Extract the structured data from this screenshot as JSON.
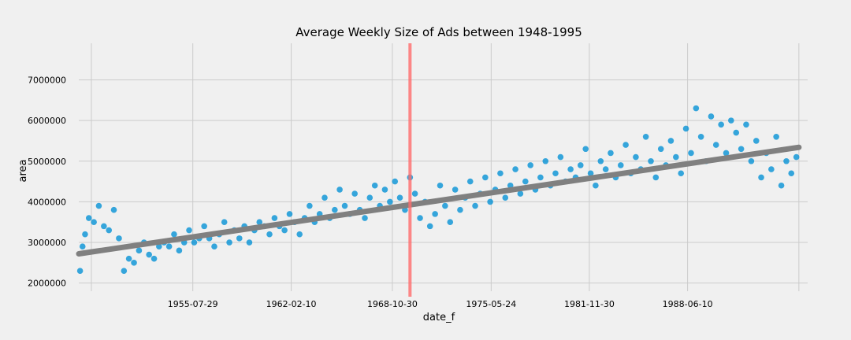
{
  "chart_data": {
    "type": "scatter",
    "title": "Average Weekly Size of Ads between 1948-1995",
    "xlabel": "date_f",
    "ylabel": "area",
    "x_ticks": [
      "1955-07-29",
      "1962-02-10",
      "1968-10-30",
      "1975-05-24",
      "1981-11-30",
      "1988-06-10"
    ],
    "y_ticks": [
      "2000000",
      "3000000",
      "4000000",
      "5000000",
      "6000000",
      "7000000"
    ],
    "xlim": [
      "1948-01-01",
      "1996-06-01"
    ],
    "ylim": [
      1800000,
      7900000
    ],
    "grid": true,
    "colors": {
      "points": "#008fd5",
      "trend": "#808080",
      "marker": "#ff6b6b",
      "background": "#f0f0f0",
      "grid": "#cbcbcb"
    },
    "series": [
      {
        "kind": "scatter",
        "x": [
          "1948-02-01",
          "1948-04-01",
          "1948-06-01",
          "1948-09-01",
          "1949-01-01",
          "1949-05-01",
          "1949-09-01",
          "1950-01-01",
          "1950-05-01",
          "1950-09-01",
          "1951-01-01",
          "1951-05-01",
          "1951-09-01",
          "1952-01-01",
          "1952-05-01",
          "1952-09-01",
          "1953-01-01",
          "1953-05-01",
          "1953-09-01",
          "1954-01-01",
          "1954-05-01",
          "1954-09-01",
          "1955-01-01",
          "1955-05-01",
          "1955-09-01",
          "1956-01-01",
          "1956-05-01",
          "1956-09-01",
          "1957-01-01",
          "1957-05-01",
          "1957-09-01",
          "1958-01-01",
          "1958-05-01",
          "1958-09-01",
          "1959-01-01",
          "1959-05-01",
          "1959-09-01",
          "1960-01-01",
          "1960-05-01",
          "1960-09-01",
          "1961-01-01",
          "1961-05-01",
          "1961-09-01",
          "1962-01-01",
          "1962-05-01",
          "1962-09-01",
          "1963-01-01",
          "1963-05-01",
          "1963-09-01",
          "1964-01-01",
          "1964-05-01",
          "1964-09-01",
          "1965-01-01",
          "1965-05-01",
          "1965-09-01",
          "1966-01-01",
          "1966-05-01",
          "1966-09-01",
          "1967-01-01",
          "1967-05-01",
          "1967-09-01",
          "1968-01-01",
          "1968-05-01",
          "1968-09-01",
          "1969-01-01",
          "1969-05-01",
          "1969-09-01",
          "1970-01-01",
          "1970-05-01",
          "1970-09-01",
          "1971-01-01",
          "1971-05-01",
          "1971-09-01",
          "1972-01-01",
          "1972-05-01",
          "1972-09-01",
          "1973-01-01",
          "1973-05-01",
          "1973-09-01",
          "1974-01-01",
          "1974-05-01",
          "1974-09-01",
          "1975-01-01",
          "1975-05-01",
          "1975-09-01",
          "1976-01-01",
          "1976-05-01",
          "1976-09-01",
          "1977-01-01",
          "1977-05-01",
          "1977-09-01",
          "1978-01-01",
          "1978-05-01",
          "1978-09-01",
          "1979-01-01",
          "1979-05-01",
          "1979-09-01",
          "1980-01-01",
          "1980-05-01",
          "1980-09-01",
          "1981-01-01",
          "1981-05-01",
          "1981-09-01",
          "1982-01-01",
          "1982-05-01",
          "1982-09-01",
          "1983-01-01",
          "1983-05-01",
          "1983-09-01",
          "1984-01-01",
          "1984-05-01",
          "1984-09-01",
          "1985-01-01",
          "1985-05-01",
          "1985-09-01",
          "1986-01-01",
          "1986-05-01",
          "1986-09-01",
          "1987-01-01",
          "1987-05-01",
          "1987-09-01",
          "1988-01-01",
          "1988-05-01",
          "1988-09-01",
          "1989-01-01",
          "1989-05-01",
          "1989-09-01",
          "1990-01-01",
          "1990-05-01",
          "1990-09-01",
          "1991-01-01",
          "1991-05-01",
          "1991-09-01",
          "1992-01-01",
          "1992-05-01",
          "1992-09-01",
          "1993-01-01",
          "1993-05-01",
          "1993-09-01",
          "1994-01-01",
          "1994-05-01",
          "1994-09-01",
          "1995-01-01",
          "1995-05-01",
          "1995-09-01"
        ],
        "y": [
          2300000,
          2900000,
          3200000,
          3600000,
          3500000,
          3900000,
          3400000,
          3300000,
          3800000,
          3100000,
          2300000,
          2600000,
          2500000,
          2800000,
          3000000,
          2700000,
          2600000,
          2900000,
          3000000,
          2900000,
          3200000,
          2800000,
          3000000,
          3300000,
          3000000,
          3100000,
          3400000,
          3100000,
          2900000,
          3200000,
          3500000,
          3000000,
          3300000,
          3100000,
          3400000,
          3000000,
          3300000,
          3500000,
          3400000,
          3200000,
          3600000,
          3400000,
          3300000,
          3700000,
          3500000,
          3200000,
          3600000,
          3900000,
          3500000,
          3700000,
          4100000,
          3600000,
          3800000,
          4300000,
          3900000,
          3700000,
          4200000,
          3800000,
          3600000,
          4100000,
          4400000,
          3900000,
          4300000,
          4000000,
          4500000,
          4100000,
          3800000,
          4600000,
          4200000,
          3600000,
          4000000,
          3400000,
          3700000,
          4400000,
          3900000,
          3500000,
          4300000,
          3800000,
          4100000,
          4500000,
          3900000,
          4200000,
          4600000,
          4000000,
          4300000,
          4700000,
          4100000,
          4400000,
          4800000,
          4200000,
          4500000,
          4900000,
          4300000,
          4600000,
          5000000,
          4400000,
          4700000,
          5100000,
          4500000,
          4800000,
          4600000,
          4900000,
          5300000,
          4700000,
          4400000,
          5000000,
          4800000,
          5200000,
          4600000,
          4900000,
          5400000,
          4700000,
          5100000,
          4800000,
          5600000,
          5000000,
          4600000,
          5300000,
          4900000,
          5500000,
          5100000,
          4700000,
          5800000,
          5200000,
          6300000,
          5600000,
          5000000,
          6100000,
          5400000,
          5900000,
          5200000,
          6000000,
          5700000,
          5300000,
          5900000,
          5000000,
          5500000,
          4600000,
          5200000,
          4800000,
          5600000,
          4400000,
          5000000,
          4700000,
          5100000
        ]
      },
      {
        "kind": "trend",
        "x": [
          "1948-01-01",
          "1995-11-01"
        ],
        "y": [
          2720000,
          5340000
        ]
      }
    ],
    "marker_line": {
      "x": "1970-01-01"
    }
  }
}
